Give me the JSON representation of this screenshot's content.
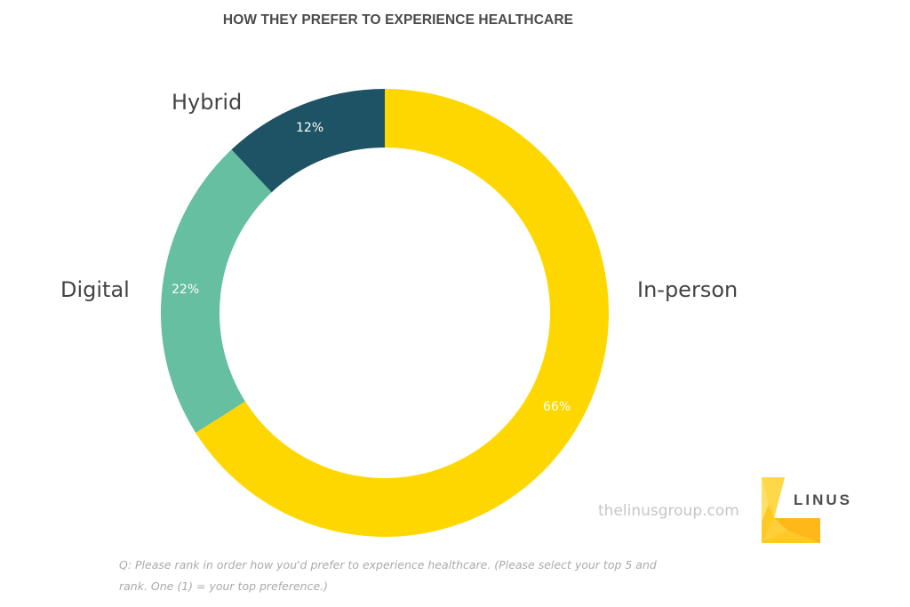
{
  "title": "HOW THEY PREFER TO EXPERIENCE HEALTHCARE",
  "chart_data": {
    "type": "pie",
    "subtype": "donut",
    "title": "HOW THEY PREFER TO EXPERIENCE HEALTHCARE",
    "categories": [
      "In-person",
      "Digital",
      "Hybrid"
    ],
    "values": [
      66,
      22,
      12
    ],
    "value_labels": [
      "66%",
      "22%",
      "12%"
    ],
    "colors": [
      "#FFD700",
      "#66BFA0",
      "#1D5365"
    ],
    "start_angle": "12 o'clock, clockwise",
    "legend": "none (direct labels)"
  },
  "labels": {
    "in_person": "In-person",
    "digital": "Digital",
    "hybrid": "Hybrid",
    "in_person_pct": "66%",
    "digital_pct": "22%",
    "hybrid_pct": "12%"
  },
  "footer": {
    "website": "thelinusgroup.com",
    "logo_text": "LINUS",
    "question": "Q: Please rank in order how you'd prefer to experience healthcare. (Please select your top 5 and rank. One (1) = your top preference.)"
  },
  "colors": {
    "in_person": "#FFD700",
    "digital": "#66BFA0",
    "hybrid": "#1D5365",
    "text": "#444444"
  }
}
